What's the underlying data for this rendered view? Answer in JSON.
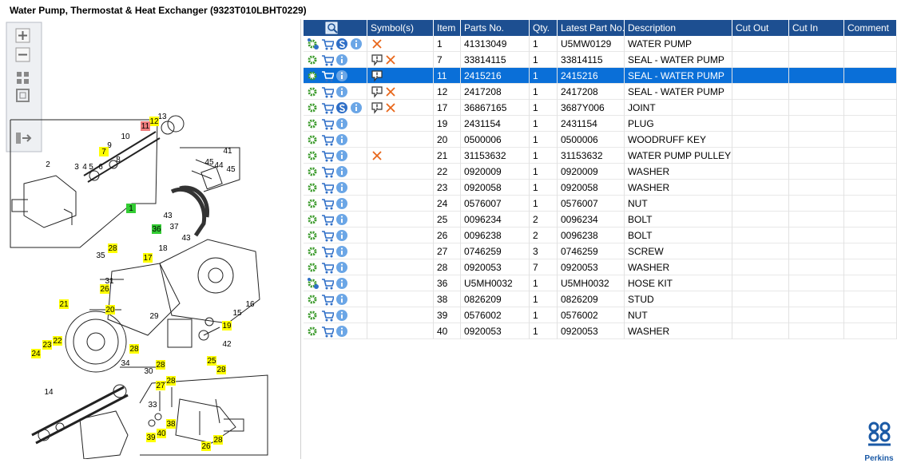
{
  "header": {
    "title": "Water Pump, Thermostat & Heat Exchanger (9323T010LBHT0229)"
  },
  "diagram": {
    "callouts": [
      {
        "label": "13"
      },
      {
        "label": "12",
        "highlight": "yellow"
      },
      {
        "label": "11",
        "highlight": "red"
      },
      {
        "label": "10"
      },
      {
        "label": "9"
      },
      {
        "label": "7",
        "highlight": "yellow"
      },
      {
        "label": "8"
      },
      {
        "label": "6"
      },
      {
        "label": "5"
      },
      {
        "label": "4"
      },
      {
        "label": "3"
      },
      {
        "label": "2"
      },
      {
        "label": "1",
        "highlight": "green"
      },
      {
        "label": "41"
      },
      {
        "label": "45"
      },
      {
        "label": "44"
      },
      {
        "label": "45"
      },
      {
        "label": "43"
      },
      {
        "label": "37"
      },
      {
        "label": "36",
        "highlight": "green"
      },
      {
        "label": "43"
      },
      {
        "label": "28",
        "highlight": "yellow"
      },
      {
        "label": "35"
      },
      {
        "label": "17",
        "highlight": "yellow"
      },
      {
        "label": "18"
      },
      {
        "label": "31"
      },
      {
        "label": "26",
        "highlight": "yellow"
      },
      {
        "label": "16"
      },
      {
        "label": "15"
      },
      {
        "label": "21",
        "highlight": "yellow"
      },
      {
        "label": "20",
        "highlight": "yellow"
      },
      {
        "label": "29"
      },
      {
        "label": "19",
        "highlight": "yellow"
      },
      {
        "label": "42"
      },
      {
        "label": "22",
        "highlight": "yellow"
      },
      {
        "label": "23",
        "highlight": "yellow"
      },
      {
        "label": "24",
        "highlight": "yellow"
      },
      {
        "label": "28",
        "highlight": "yellow"
      },
      {
        "label": "34"
      },
      {
        "label": "28",
        "highlight": "yellow"
      },
      {
        "label": "30"
      },
      {
        "label": "14"
      },
      {
        "label": "25",
        "highlight": "yellow"
      },
      {
        "label": "28",
        "highlight": "yellow"
      },
      {
        "label": "27",
        "highlight": "yellow"
      },
      {
        "label": "28",
        "highlight": "yellow"
      },
      {
        "label": "33"
      },
      {
        "label": "38",
        "highlight": "yellow"
      },
      {
        "label": "40",
        "highlight": "yellow"
      },
      {
        "label": "39",
        "highlight": "yellow"
      },
      {
        "label": "26",
        "highlight": "yellow"
      },
      {
        "label": "28",
        "highlight": "yellow"
      }
    ]
  },
  "table": {
    "columns": [
      "Symbol(s)",
      "Item",
      "Parts No.",
      "Qty.",
      "Latest Part No.",
      "Description",
      "Cut Out",
      "Cut In",
      "Comment"
    ],
    "selected_row": 2,
    "rows": [
      {
        "item": 1,
        "parts_no": "41313049",
        "qty": 1,
        "latest_part_no": "U5MW0129",
        "description": "WATER PUMP",
        "kit": true,
        "service": true,
        "symbols": [
          "cross"
        ]
      },
      {
        "item": 7,
        "parts_no": "33814115",
        "qty": 1,
        "latest_part_no": "33814115",
        "description": "SEAL - WATER PUMP",
        "symbols": [
          "note",
          "cross"
        ]
      },
      {
        "item": 11,
        "parts_no": "2415216",
        "qty": 1,
        "latest_part_no": "2415216",
        "description": "SEAL - WATER PUMP",
        "symbols": [
          "note"
        ]
      },
      {
        "item": 12,
        "parts_no": "2417208",
        "qty": 1,
        "latest_part_no": "2417208",
        "description": "SEAL - WATER PUMP",
        "symbols": [
          "note",
          "cross"
        ]
      },
      {
        "item": 17,
        "parts_no": "36867165",
        "qty": 1,
        "latest_part_no": "3687Y006",
        "description": "JOINT",
        "service": true,
        "symbols": [
          "note",
          "cross"
        ]
      },
      {
        "item": 19,
        "parts_no": "2431154",
        "qty": 1,
        "latest_part_no": "2431154",
        "description": "PLUG"
      },
      {
        "item": 20,
        "parts_no": "0500006",
        "qty": 1,
        "latest_part_no": "0500006",
        "description": "WOODRUFF KEY"
      },
      {
        "item": 21,
        "parts_no": "31153632",
        "qty": 1,
        "latest_part_no": "31153632",
        "description": "WATER PUMP PULLEY",
        "symbols": [
          "cross"
        ]
      },
      {
        "item": 22,
        "parts_no": "0920009",
        "qty": 1,
        "latest_part_no": "0920009",
        "description": "WASHER"
      },
      {
        "item": 23,
        "parts_no": "0920058",
        "qty": 1,
        "latest_part_no": "0920058",
        "description": "WASHER"
      },
      {
        "item": 24,
        "parts_no": "0576007",
        "qty": 1,
        "latest_part_no": "0576007",
        "description": "NUT"
      },
      {
        "item": 25,
        "parts_no": "0096234",
        "qty": 2,
        "latest_part_no": "0096234",
        "description": "BOLT"
      },
      {
        "item": 26,
        "parts_no": "0096238",
        "qty": 2,
        "latest_part_no": "0096238",
        "description": "BOLT"
      },
      {
        "item": 27,
        "parts_no": "0746259",
        "qty": 3,
        "latest_part_no": "0746259",
        "description": "SCREW"
      },
      {
        "item": 28,
        "parts_no": "0920053",
        "qty": 7,
        "latest_part_no": "0920053",
        "description": "WASHER"
      },
      {
        "item": 36,
        "parts_no": "U5MH0032",
        "qty": 1,
        "latest_part_no": "U5MH0032",
        "description": "HOSE KIT",
        "kit": true
      },
      {
        "item": 38,
        "parts_no": "0826209",
        "qty": 1,
        "latest_part_no": "0826209",
        "description": "STUD"
      },
      {
        "item": 39,
        "parts_no": "0576002",
        "qty": 1,
        "latest_part_no": "0576002",
        "description": "NUT"
      },
      {
        "item": 40,
        "parts_no": "0920053",
        "qty": 1,
        "latest_part_no": "0920053",
        "description": "WASHER"
      }
    ]
  },
  "brand": {
    "name": "Perkins"
  }
}
